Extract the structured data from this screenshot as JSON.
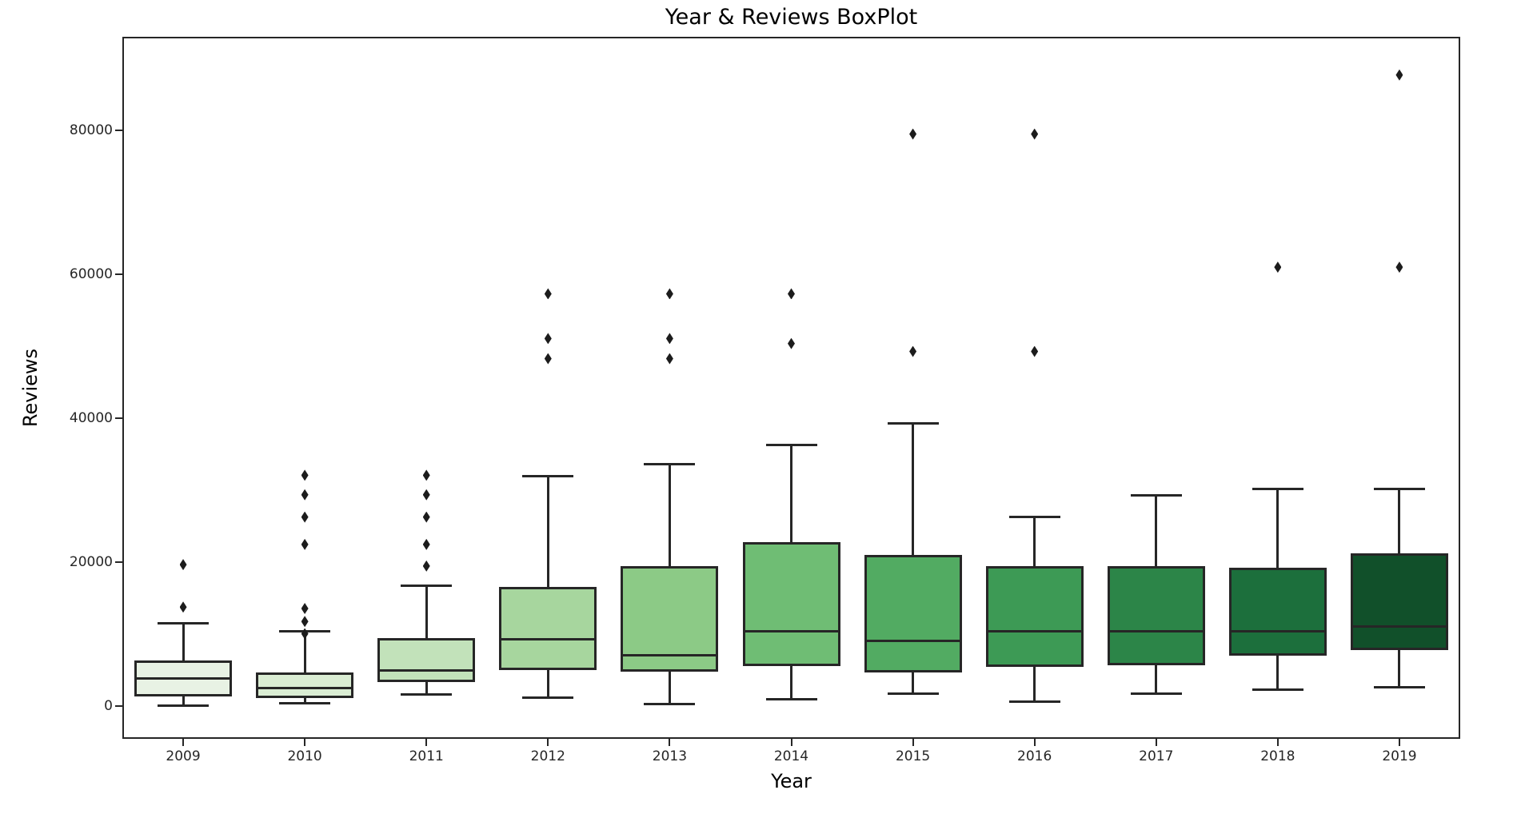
{
  "chart_data": {
    "type": "boxplot",
    "title": "Year & Reviews BoxPlot",
    "xlabel": "Year",
    "ylabel": "Reviews",
    "categories": [
      "2009",
      "2010",
      "2011",
      "2012",
      "2013",
      "2014",
      "2015",
      "2016",
      "2017",
      "2018",
      "2019"
    ],
    "yticks": [
      0,
      20000,
      40000,
      60000,
      80000
    ],
    "ylim": [
      -4500,
      93000
    ],
    "grid": false,
    "legend": "none",
    "box_edge_color": "#262626",
    "outlier_color": "#1c1c1c",
    "series": [
      {
        "label": "2009",
        "color": "#e8f2e4",
        "whislo": 100,
        "q1": 1400,
        "med": 3900,
        "q3": 6400,
        "whishi": 11500,
        "outliers": [
          19700,
          13800
        ]
      },
      {
        "label": "2010",
        "color": "#daedd3",
        "whislo": 400,
        "q1": 1200,
        "med": 2500,
        "q3": 4700,
        "whishi": 10400,
        "outliers": [
          32100,
          29400,
          26300,
          22500,
          13600,
          11800,
          10100
        ]
      },
      {
        "label": "2011",
        "color": "#c2e2ba",
        "whislo": 1700,
        "q1": 3400,
        "med": 5000,
        "q3": 9500,
        "whishi": 16800,
        "outliers": [
          32100,
          29400,
          26300,
          22500,
          19500
        ]
      },
      {
        "label": "2012",
        "color": "#a7d69e",
        "whislo": 1200,
        "q1": 5100,
        "med": 9300,
        "q3": 16600,
        "whishi": 32000,
        "outliers": [
          57300,
          51100,
          48300
        ]
      },
      {
        "label": "2013",
        "color": "#8cca86",
        "whislo": 300,
        "q1": 4800,
        "med": 7100,
        "q3": 19500,
        "whishi": 33700,
        "outliers": [
          57300,
          51100,
          48300
        ]
      },
      {
        "label": "2014",
        "color": "#6fbd74",
        "whislo": 1000,
        "q1": 5600,
        "med": 10400,
        "q3": 22800,
        "whishi": 36300,
        "outliers": [
          57300,
          50400
        ]
      },
      {
        "label": "2015",
        "color": "#52ab62",
        "whislo": 1800,
        "q1": 4700,
        "med": 9100,
        "q3": 21000,
        "whishi": 39300,
        "outliers": [
          79500,
          49300
        ]
      },
      {
        "label": "2016",
        "color": "#3d9a55",
        "whislo": 700,
        "q1": 5500,
        "med": 10400,
        "q3": 19500,
        "whishi": 26300,
        "outliers": [
          79500,
          49300
        ]
      },
      {
        "label": "2017",
        "color": "#2c8548",
        "whislo": 1800,
        "q1": 5700,
        "med": 10400,
        "q3": 19500,
        "whishi": 29300,
        "outliers": []
      },
      {
        "label": "2018",
        "color": "#1c6f3c",
        "whislo": 2300,
        "q1": 7100,
        "med": 10400,
        "q3": 19300,
        "whishi": 30200,
        "outliers": [
          61000
        ]
      },
      {
        "label": "2019",
        "color": "#11502a",
        "whislo": 2700,
        "q1": 7800,
        "med": 11100,
        "q3": 21300,
        "whishi": 30200,
        "outliers": [
          87700,
          61000
        ]
      }
    ]
  }
}
